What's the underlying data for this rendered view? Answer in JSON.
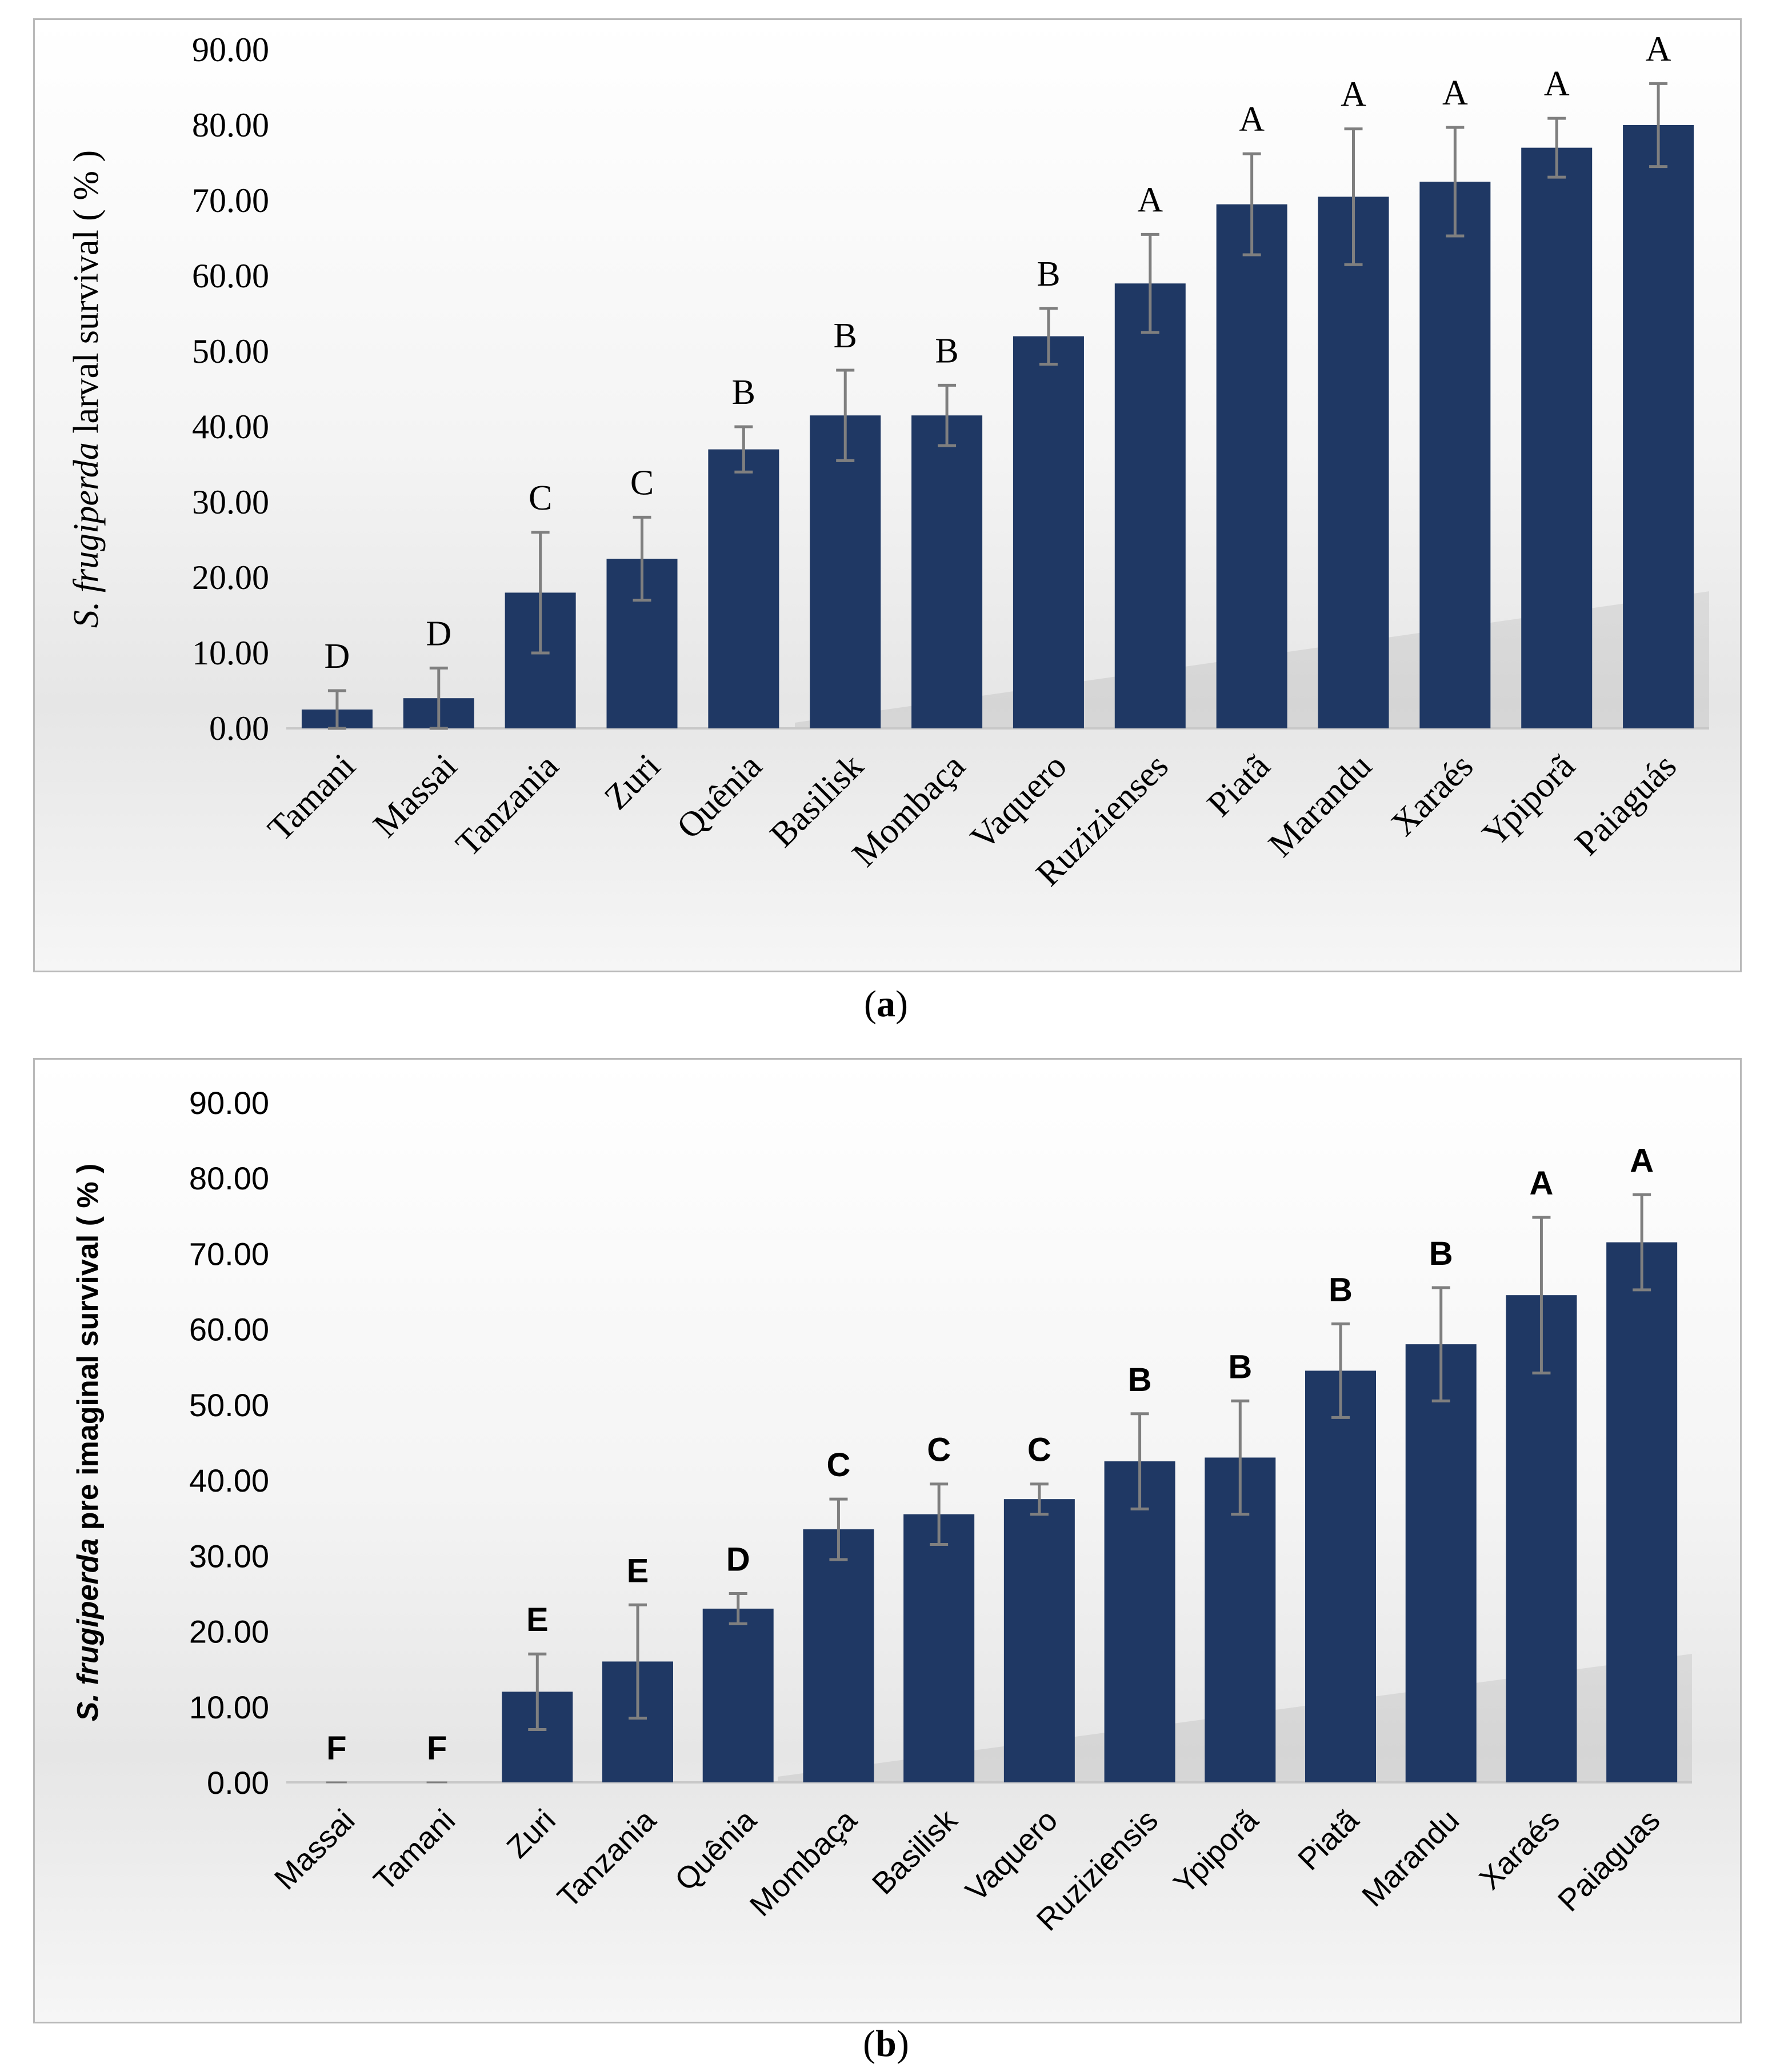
{
  "chart_data": [
    {
      "type": "bar",
      "ylabel_italic": "S. frugiperda",
      "ylabel_rest": " larval  survival ( % )",
      "ylim": [
        0,
        90
      ],
      "yticks": [
        "0.00",
        "10.00",
        "20.00",
        "30.00",
        "40.00",
        "50.00",
        "60.00",
        "70.00",
        "80.00",
        "90.00"
      ],
      "categories": [
        "Tamani",
        "Massai",
        "Tanzania",
        "Zuri",
        "Quênia",
        "Basilisk",
        "Mombaça",
        "Vaquero",
        "Ruzizienses",
        "Piatã",
        "Marandu",
        "Xaraés",
        "Ypiporã",
        "Paiaguás"
      ],
      "values": [
        2.5,
        4.0,
        18.0,
        22.5,
        37.0,
        41.5,
        41.5,
        52.0,
        59.0,
        69.5,
        70.5,
        72.5,
        77.0,
        80.0
      ],
      "error": [
        2.5,
        4.0,
        8.0,
        5.5,
        3.0,
        6.0,
        4.0,
        3.7,
        6.5,
        6.7,
        9.0,
        7.2,
        3.9,
        5.5
      ],
      "letters": [
        "D",
        "D",
        "C",
        "C",
        "B",
        "B",
        "B",
        "B",
        "A",
        "A",
        "A",
        "A",
        "A",
        "A"
      ],
      "bar_color": "#1f3864",
      "error_color": "#7f7f7f",
      "grid": false,
      "caption_label": "a"
    },
    {
      "type": "bar",
      "ylabel_italic": "S. frugiperda",
      "ylabel_rest": " pre imaginal survival ( % )",
      "ylim": [
        0,
        90
      ],
      "yticks": [
        "0.00",
        "10.00",
        "20.00",
        "30.00",
        "40.00",
        "50.00",
        "60.00",
        "70.00",
        "80.00",
        "90.00"
      ],
      "categories": [
        "Massai",
        "Tamani",
        "Zuri",
        "Tanzania",
        "Quênia",
        "Mombaça",
        "Basilisk",
        "Vaquero",
        "Ruziziensis",
        "Ypiporã",
        "Piatã",
        "Marandu",
        "Xaraés",
        "Paiaguas"
      ],
      "values": [
        0.0,
        0.0,
        12.0,
        16.0,
        23.0,
        33.5,
        35.5,
        37.5,
        42.5,
        43.0,
        54.5,
        58.0,
        64.5,
        71.5
      ],
      "error": [
        0,
        0,
        5.0,
        7.5,
        2.0,
        4.0,
        4.0,
        2.0,
        6.3,
        7.5,
        6.2,
        7.5,
        10.3,
        6.3
      ],
      "letters": [
        "F",
        "F",
        "E",
        "E",
        "D",
        "C",
        "C",
        "C",
        "B",
        "B",
        "B",
        "B",
        "A",
        "A"
      ],
      "bar_color": "#1f3864",
      "error_color": "#7f7f7f",
      "grid": false,
      "caption_label": "b"
    }
  ]
}
